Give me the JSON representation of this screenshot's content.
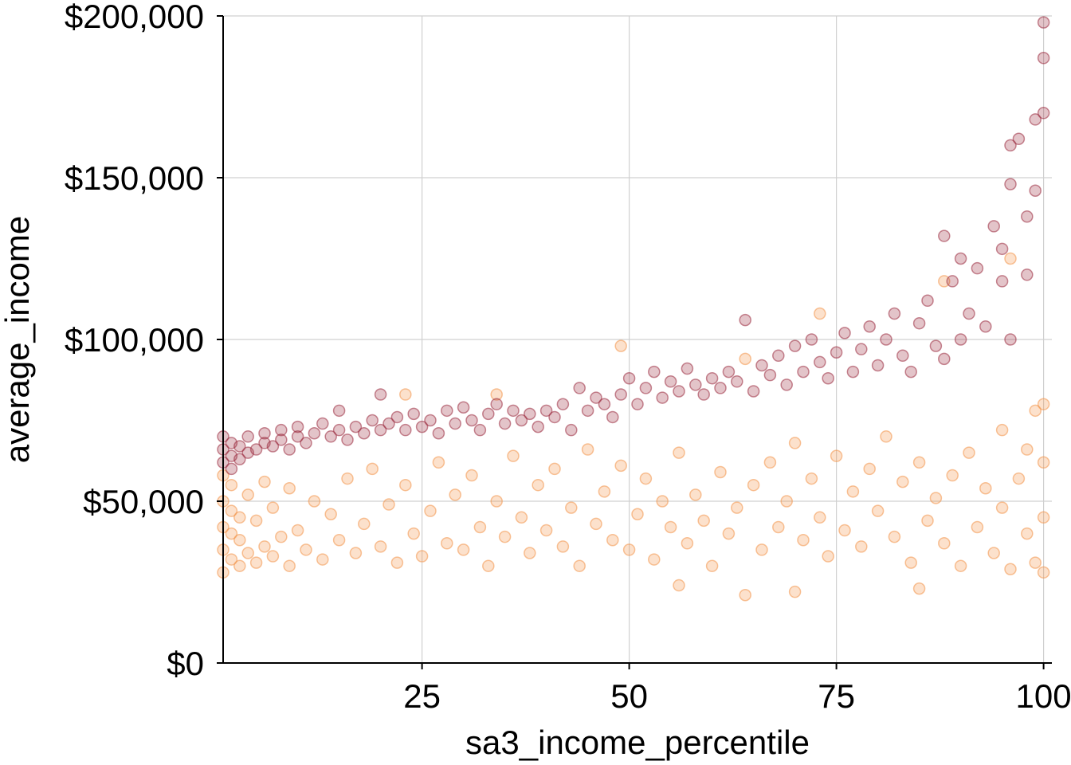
{
  "chart_data": {
    "type": "scatter",
    "xlabel": "sa3_income_percentile",
    "ylabel": "average_income",
    "xlim": [
      1,
      101
    ],
    "ylim": [
      0,
      200000
    ],
    "xticks": [
      25,
      50,
      75,
      100
    ],
    "xtick_labels": [
      "25",
      "50",
      "75",
      "100"
    ],
    "yticks": [
      0,
      50000,
      100000,
      150000,
      200000
    ],
    "ytick_labels": [
      "$0",
      "$50,000",
      "$100,000",
      "$150,000",
      "$200,000"
    ],
    "grid": true,
    "legend": "none",
    "colors": {
      "upper": "#9b2a3e",
      "lower": "#f39448"
    },
    "series": [
      {
        "color": "#9b2a3e",
        "values": [
          [
            1,
            62000
          ],
          [
            1,
            66000
          ],
          [
            1,
            70000
          ],
          [
            2,
            60000
          ],
          [
            2,
            64000
          ],
          [
            2,
            68000
          ],
          [
            3,
            63000
          ],
          [
            3,
            67000
          ],
          [
            4,
            65000
          ],
          [
            4,
            70000
          ],
          [
            5,
            66000
          ],
          [
            6,
            68000
          ],
          [
            6,
            71000
          ],
          [
            7,
            67000
          ],
          [
            8,
            69000
          ],
          [
            8,
            72000
          ],
          [
            9,
            66000
          ],
          [
            10,
            70000
          ],
          [
            10,
            73000
          ],
          [
            11,
            68000
          ],
          [
            12,
            71000
          ],
          [
            13,
            74000
          ],
          [
            14,
            70000
          ],
          [
            15,
            72000
          ],
          [
            15,
            78000
          ],
          [
            16,
            69000
          ],
          [
            17,
            73000
          ],
          [
            18,
            71000
          ],
          [
            19,
            75000
          ],
          [
            20,
            83000
          ],
          [
            20,
            72000
          ],
          [
            21,
            74000
          ],
          [
            22,
            76000
          ],
          [
            23,
            72000
          ],
          [
            24,
            77000
          ],
          [
            25,
            73000
          ],
          [
            26,
            75000
          ],
          [
            27,
            71000
          ],
          [
            28,
            78000
          ],
          [
            29,
            74000
          ],
          [
            30,
            79000
          ],
          [
            31,
            75000
          ],
          [
            32,
            72000
          ],
          [
            33,
            77000
          ],
          [
            34,
            80000
          ],
          [
            35,
            74000
          ],
          [
            36,
            78000
          ],
          [
            37,
            75000
          ],
          [
            38,
            77000
          ],
          [
            39,
            73000
          ],
          [
            40,
            78000
          ],
          [
            41,
            76000
          ],
          [
            42,
            80000
          ],
          [
            43,
            72000
          ],
          [
            44,
            85000
          ],
          [
            45,
            78000
          ],
          [
            46,
            82000
          ],
          [
            47,
            80000
          ],
          [
            48,
            76000
          ],
          [
            49,
            83000
          ],
          [
            50,
            88000
          ],
          [
            51,
            80000
          ],
          [
            52,
            85000
          ],
          [
            53,
            90000
          ],
          [
            54,
            82000
          ],
          [
            55,
            87000
          ],
          [
            56,
            84000
          ],
          [
            57,
            91000
          ],
          [
            58,
            86000
          ],
          [
            59,
            83000
          ],
          [
            60,
            88000
          ],
          [
            61,
            85000
          ],
          [
            62,
            90000
          ],
          [
            63,
            87000
          ],
          [
            64,
            106000
          ],
          [
            65,
            84000
          ],
          [
            66,
            92000
          ],
          [
            67,
            89000
          ],
          [
            68,
            95000
          ],
          [
            69,
            86000
          ],
          [
            70,
            98000
          ],
          [
            71,
            90000
          ],
          [
            72,
            100000
          ],
          [
            73,
            93000
          ],
          [
            74,
            88000
          ],
          [
            75,
            96000
          ],
          [
            76,
            102000
          ],
          [
            77,
            90000
          ],
          [
            78,
            97000
          ],
          [
            79,
            104000
          ],
          [
            80,
            92000
          ],
          [
            81,
            100000
          ],
          [
            82,
            108000
          ],
          [
            83,
            95000
          ],
          [
            84,
            90000
          ],
          [
            85,
            105000
          ],
          [
            86,
            112000
          ],
          [
            87,
            98000
          ],
          [
            88,
            132000
          ],
          [
            88,
            94000
          ],
          [
            89,
            118000
          ],
          [
            90,
            100000
          ],
          [
            90,
            125000
          ],
          [
            91,
            108000
          ],
          [
            92,
            122000
          ],
          [
            93,
            104000
          ],
          [
            94,
            135000
          ],
          [
            95,
            118000
          ],
          [
            95,
            128000
          ],
          [
            96,
            100000
          ],
          [
            96,
            148000
          ],
          [
            96,
            160000
          ],
          [
            97,
            162000
          ],
          [
            98,
            120000
          ],
          [
            98,
            138000
          ],
          [
            99,
            146000
          ],
          [
            99,
            168000
          ],
          [
            100,
            170000
          ],
          [
            100,
            187000
          ],
          [
            100,
            198000
          ]
        ]
      },
      {
        "color": "#f39448",
        "values": [
          [
            1,
            28000
          ],
          [
            1,
            35000
          ],
          [
            1,
            42000
          ],
          [
            1,
            50000
          ],
          [
            1,
            58000
          ],
          [
            2,
            32000
          ],
          [
            2,
            40000
          ],
          [
            2,
            47000
          ],
          [
            2,
            55000
          ],
          [
            3,
            30000
          ],
          [
            3,
            38000
          ],
          [
            3,
            45000
          ],
          [
            4,
            34000
          ],
          [
            4,
            52000
          ],
          [
            5,
            31000
          ],
          [
            5,
            44000
          ],
          [
            6,
            36000
          ],
          [
            6,
            56000
          ],
          [
            7,
            33000
          ],
          [
            7,
            48000
          ],
          [
            8,
            39000
          ],
          [
            9,
            30000
          ],
          [
            9,
            54000
          ],
          [
            10,
            41000
          ],
          [
            11,
            35000
          ],
          [
            12,
            50000
          ],
          [
            13,
            32000
          ],
          [
            14,
            46000
          ],
          [
            15,
            38000
          ],
          [
            16,
            57000
          ],
          [
            17,
            34000
          ],
          [
            18,
            43000
          ],
          [
            19,
            60000
          ],
          [
            20,
            36000
          ],
          [
            21,
            49000
          ],
          [
            22,
            31000
          ],
          [
            23,
            83000
          ],
          [
            23,
            55000
          ],
          [
            24,
            40000
          ],
          [
            25,
            33000
          ],
          [
            26,
            47000
          ],
          [
            27,
            62000
          ],
          [
            28,
            37000
          ],
          [
            29,
            52000
          ],
          [
            30,
            35000
          ],
          [
            31,
            58000
          ],
          [
            32,
            42000
          ],
          [
            33,
            30000
          ],
          [
            34,
            83000
          ],
          [
            34,
            50000
          ],
          [
            35,
            39000
          ],
          [
            36,
            64000
          ],
          [
            37,
            45000
          ],
          [
            38,
            34000
          ],
          [
            39,
            55000
          ],
          [
            40,
            41000
          ],
          [
            41,
            60000
          ],
          [
            42,
            36000
          ],
          [
            43,
            48000
          ],
          [
            44,
            30000
          ],
          [
            45,
            66000
          ],
          [
            46,
            43000
          ],
          [
            47,
            53000
          ],
          [
            48,
            38000
          ],
          [
            49,
            98000
          ],
          [
            49,
            61000
          ],
          [
            50,
            35000
          ],
          [
            51,
            46000
          ],
          [
            52,
            57000
          ],
          [
            53,
            32000
          ],
          [
            54,
            50000
          ],
          [
            55,
            42000
          ],
          [
            56,
            24000
          ],
          [
            56,
            65000
          ],
          [
            57,
            37000
          ],
          [
            58,
            52000
          ],
          [
            59,
            44000
          ],
          [
            60,
            30000
          ],
          [
            61,
            59000
          ],
          [
            62,
            40000
          ],
          [
            63,
            48000
          ],
          [
            64,
            21000
          ],
          [
            64,
            94000
          ],
          [
            65,
            55000
          ],
          [
            66,
            35000
          ],
          [
            67,
            62000
          ],
          [
            68,
            42000
          ],
          [
            69,
            50000
          ],
          [
            70,
            22000
          ],
          [
            70,
            68000
          ],
          [
            71,
            38000
          ],
          [
            72,
            57000
          ],
          [
            73,
            108000
          ],
          [
            73,
            45000
          ],
          [
            74,
            33000
          ],
          [
            75,
            64000
          ],
          [
            76,
            41000
          ],
          [
            77,
            53000
          ],
          [
            78,
            36000
          ],
          [
            79,
            60000
          ],
          [
            80,
            47000
          ],
          [
            81,
            70000
          ],
          [
            82,
            39000
          ],
          [
            83,
            56000
          ],
          [
            84,
            31000
          ],
          [
            85,
            23000
          ],
          [
            85,
            62000
          ],
          [
            86,
            44000
          ],
          [
            87,
            51000
          ],
          [
            88,
            118000
          ],
          [
            88,
            37000
          ],
          [
            89,
            58000
          ],
          [
            90,
            30000
          ],
          [
            91,
            65000
          ],
          [
            92,
            42000
          ],
          [
            93,
            54000
          ],
          [
            94,
            34000
          ],
          [
            95,
            72000
          ],
          [
            95,
            48000
          ],
          [
            96,
            29000
          ],
          [
            96,
            125000
          ],
          [
            97,
            57000
          ],
          [
            98,
            40000
          ],
          [
            98,
            66000
          ],
          [
            99,
            31000
          ],
          [
            99,
            78000
          ],
          [
            100,
            28000
          ],
          [
            100,
            45000
          ],
          [
            100,
            62000
          ],
          [
            100,
            80000
          ]
        ]
      }
    ]
  }
}
